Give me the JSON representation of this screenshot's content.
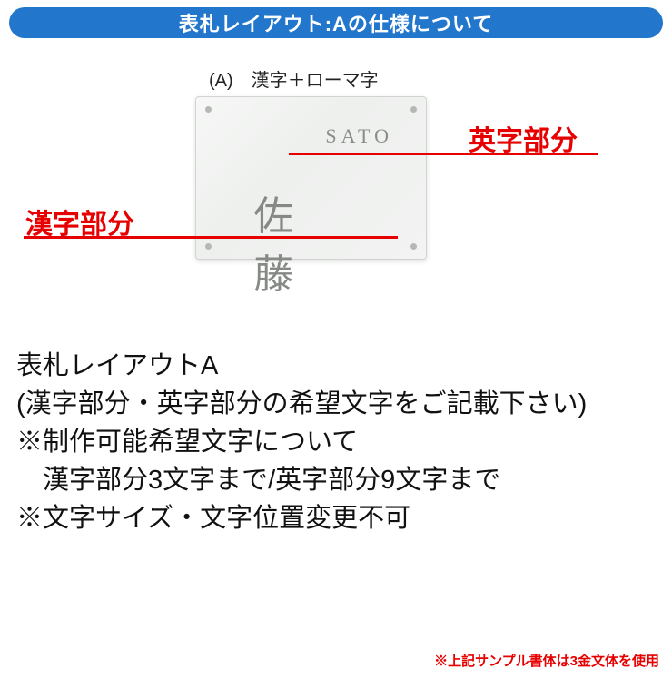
{
  "header": {
    "title": "表札レイアウト:Aの仕様について",
    "bg_color": "#2277cc",
    "text_color": "#ffffff"
  },
  "sample": {
    "caption": "(A)　漢字＋ローマ字",
    "plate_eng": "SATO",
    "plate_kanji": "佐 藤"
  },
  "annotations": {
    "eng_label": "英字部分",
    "kanji_label": "漢字部分",
    "color": "#e60000",
    "fontsize": 30
  },
  "body": {
    "line1": "表札レイアウトA",
    "line2": "(漢字部分・英字部分の希望文字をご記載下さい)",
    "line3": "※制作可能希望文字について",
    "line4": "　漢字部分3文字まで/英字部分9文字まで",
    "line5": "※文字サイズ・文字位置変更不可"
  },
  "footnote": {
    "text": "※上記サンプル書体は3金文体を使用",
    "color": "#e60000"
  }
}
